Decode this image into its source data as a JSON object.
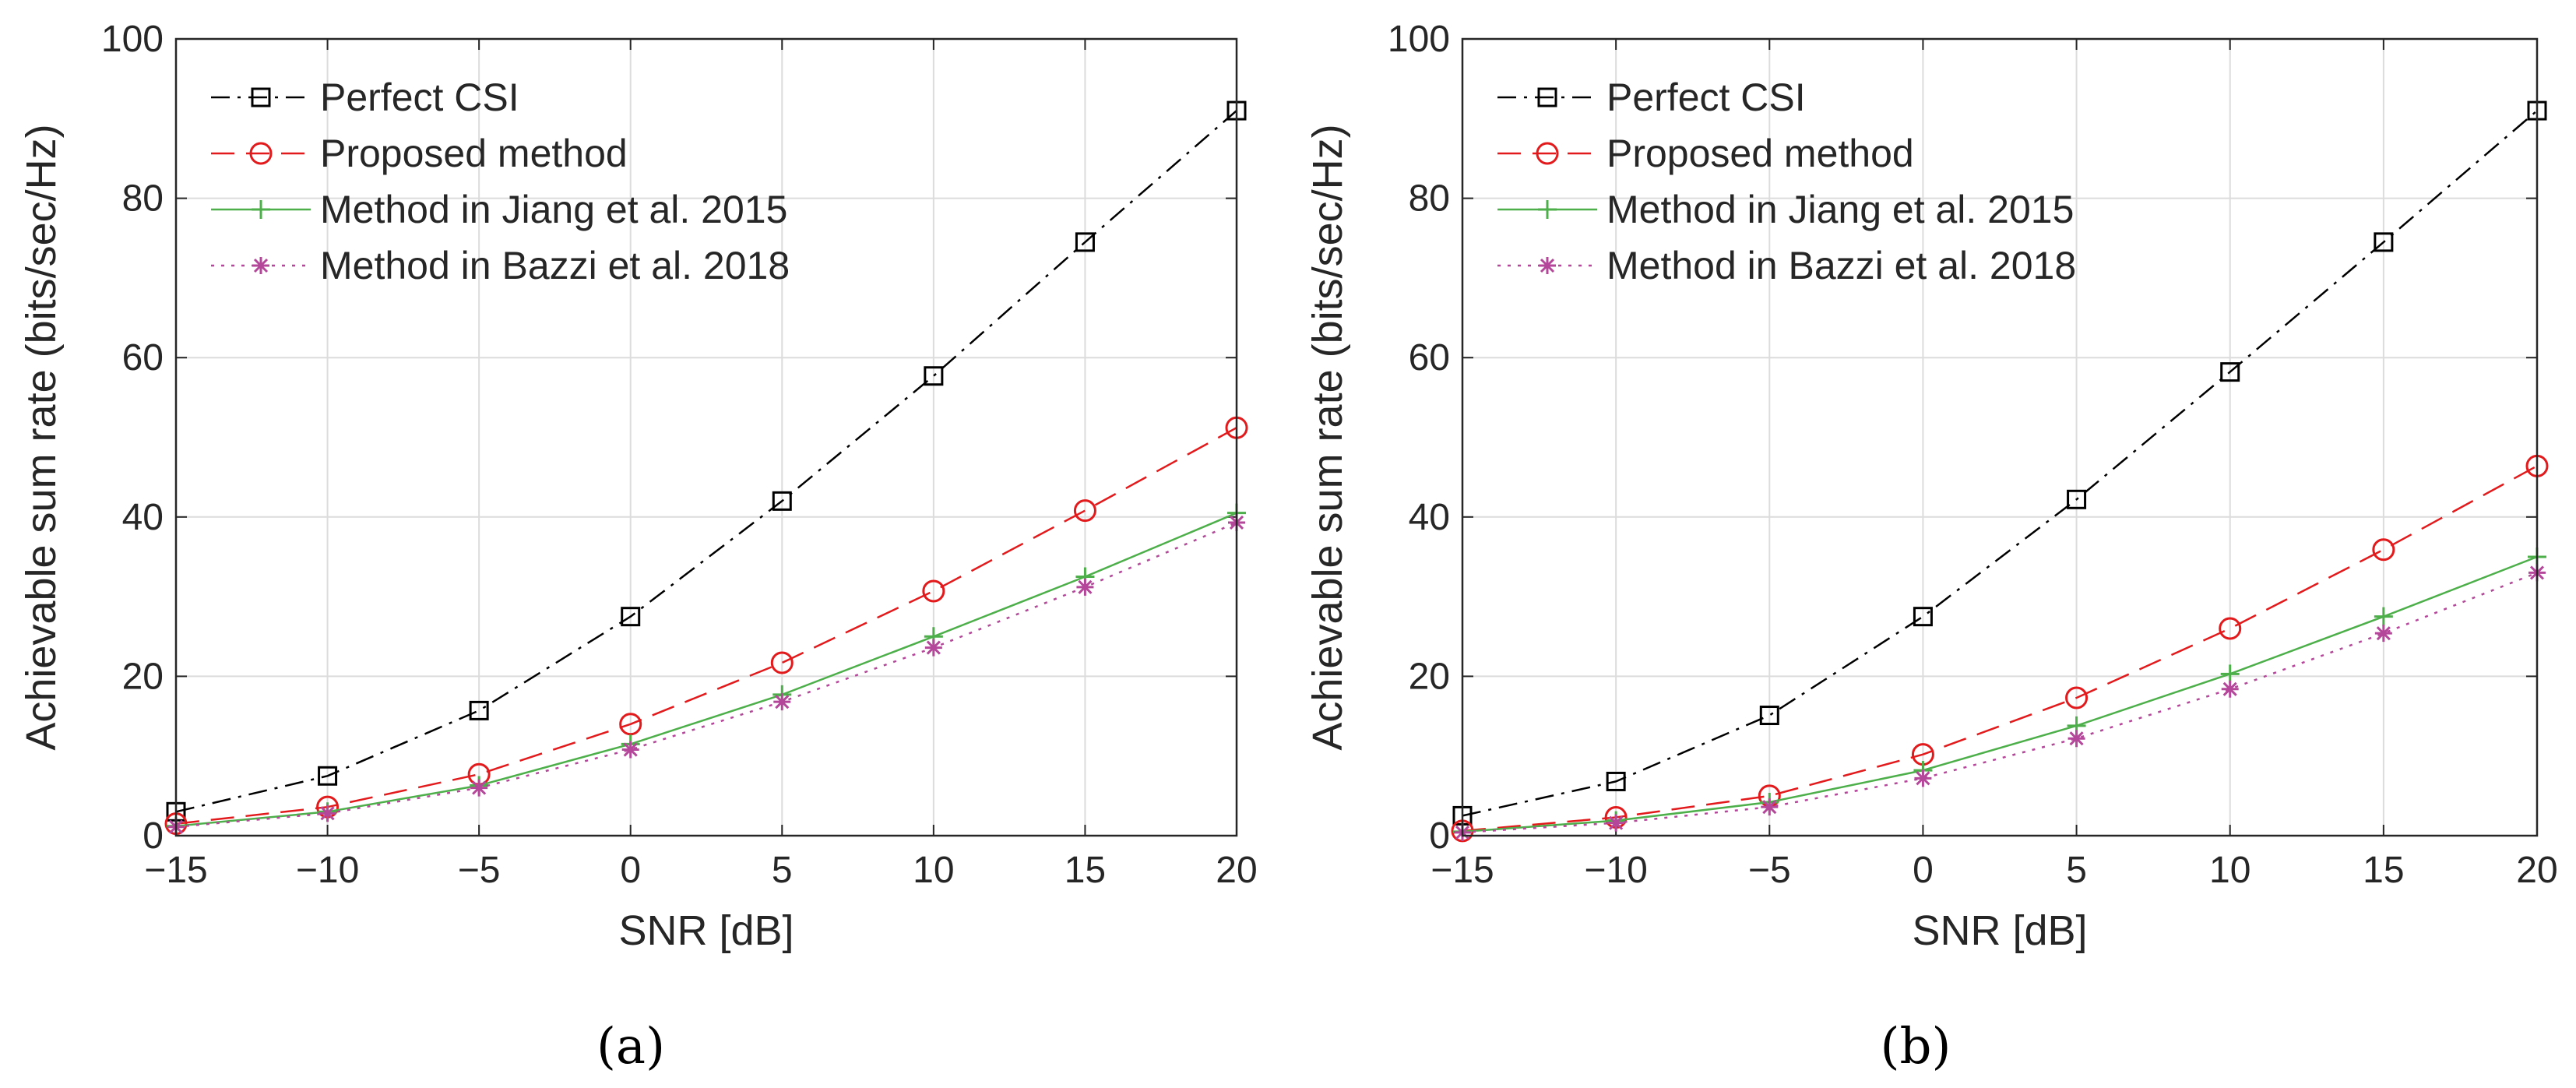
{
  "chart_data": [
    {
      "type": "line",
      "caption": "(a)",
      "xlabel": "SNR [dB]",
      "ylabel": "Achievable sum rate (bits/sec/Hz)",
      "xlim": [
        -15,
        20
      ],
      "ylim": [
        0,
        100
      ],
      "xticks": [
        -15,
        -10,
        -5,
        0,
        5,
        10,
        15,
        20
      ],
      "xtick_labels": [
        "−15",
        "−10",
        "−5",
        "0",
        "5",
        "10",
        "15",
        "20"
      ],
      "yticks": [
        0,
        20,
        40,
        60,
        80,
        100
      ],
      "ytick_labels": [
        "0",
        "20",
        "40",
        "60",
        "80",
        "100"
      ],
      "grid": true,
      "legend_position": "top-left",
      "x": [
        -15,
        -10,
        -5,
        0,
        5,
        10,
        15,
        20
      ],
      "series": [
        {
          "name": "Perfect CSI",
          "color": "#000000",
          "dash": "dashdot",
          "marker": "square",
          "values": [
            3.0,
            7.5,
            15.7,
            27.5,
            42.0,
            57.7,
            74.5,
            91.0
          ]
        },
        {
          "name": "Proposed method",
          "color": "#e31a1c",
          "dash": "dashed",
          "marker": "circle",
          "values": [
            1.5,
            3.6,
            7.7,
            14.0,
            21.7,
            30.7,
            40.8,
            51.2
          ]
        },
        {
          "name": "Method in Jiang et al. 2015",
          "color": "#4daf4a",
          "dash": "solid",
          "marker": "plus",
          "values": [
            1.2,
            3.0,
            6.3,
            11.5,
            17.7,
            25.0,
            32.5,
            40.5
          ]
        },
        {
          "name": "Method in Bazzi et al. 2018",
          "color": "#b5479a",
          "dash": "dotted",
          "marker": "asterisk",
          "values": [
            1.1,
            2.8,
            6.0,
            10.8,
            16.8,
            23.6,
            31.2,
            39.3
          ]
        }
      ]
    },
    {
      "type": "line",
      "caption": "(b)",
      "xlabel": "SNR [dB]",
      "ylabel": "Achievable sum rate (bits/sec/Hz)",
      "xlim": [
        -15,
        20
      ],
      "ylim": [
        0,
        100
      ],
      "xticks": [
        -15,
        -10,
        -5,
        0,
        5,
        10,
        15,
        20
      ],
      "xtick_labels": [
        "−15",
        "−10",
        "−5",
        "0",
        "5",
        "10",
        "15",
        "20"
      ],
      "yticks": [
        0,
        20,
        40,
        60,
        80,
        100
      ],
      "ytick_labels": [
        "0",
        "20",
        "40",
        "60",
        "80",
        "100"
      ],
      "grid": true,
      "legend_position": "top-left",
      "x": [
        -15,
        -10,
        -5,
        0,
        5,
        10,
        15,
        20
      ],
      "series": [
        {
          "name": "Perfect CSI",
          "color": "#000000",
          "dash": "dashdot",
          "marker": "square",
          "values": [
            2.5,
            6.8,
            15.1,
            27.5,
            42.2,
            58.2,
            74.5,
            91.0
          ]
        },
        {
          "name": "Proposed method",
          "color": "#e31a1c",
          "dash": "dashed",
          "marker": "circle",
          "values": [
            0.6,
            2.3,
            5.0,
            10.2,
            17.3,
            26.0,
            35.9,
            46.4
          ]
        },
        {
          "name": "Method in Jiang et al. 2015",
          "color": "#4daf4a",
          "dash": "solid",
          "marker": "plus",
          "values": [
            0.5,
            1.9,
            4.2,
            8.2,
            13.8,
            20.3,
            27.5,
            35.0
          ]
        },
        {
          "name": "Method in Bazzi et al. 2018",
          "color": "#b5479a",
          "dash": "dotted",
          "marker": "asterisk",
          "values": [
            0.4,
            1.6,
            3.6,
            7.2,
            12.2,
            18.4,
            25.4,
            33.0
          ]
        }
      ]
    }
  ]
}
